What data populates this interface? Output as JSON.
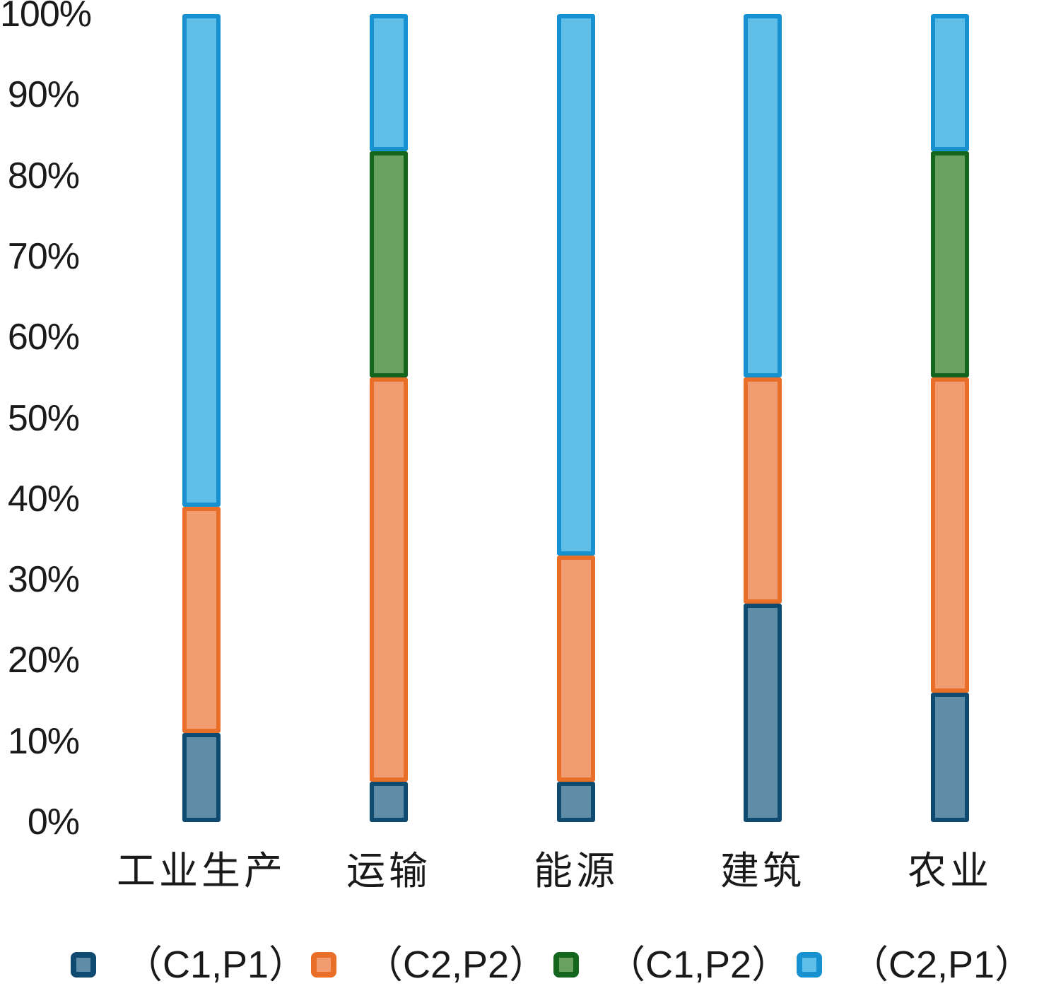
{
  "chart_data": {
    "type": "bar",
    "subtype": "stacked-100-percent-column",
    "title": "",
    "xlabel": "",
    "ylabel": "",
    "categories": [
      "工业生产",
      "运输",
      "能源",
      "建筑",
      "农业"
    ],
    "series": [
      {
        "name": "（C1,P1）",
        "values": [
          11,
          5,
          5,
          27,
          16
        ],
        "fill": "#5F8CA7",
        "border": "#0F4B70"
      },
      {
        "name": "（C2,P2）",
        "values": [
          28,
          50,
          28,
          28,
          39
        ],
        "fill": "#F29C72",
        "border": "#E96F28"
      },
      {
        "name": "（C1,P2）",
        "values": [
          0,
          28,
          0,
          0,
          28
        ],
        "fill": "#6AA061",
        "border": "#14651D"
      },
      {
        "name": "（C2,P1）",
        "values": [
          61,
          17,
          67,
          45,
          17
        ],
        "fill": "#5FBFE8",
        "border": "#1791D0"
      }
    ],
    "y_ticks": [
      "0%",
      "10%",
      "20%",
      "30%",
      "40%",
      "50%",
      "60%",
      "70%",
      "80%",
      "90%",
      "100%"
    ],
    "ylim": [
      0,
      100
    ],
    "grid": false,
    "legend_position": "bottom"
  }
}
